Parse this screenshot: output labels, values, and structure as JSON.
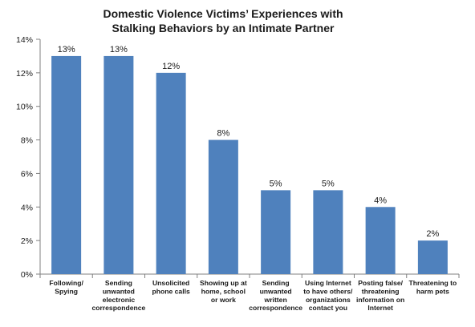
{
  "chart_data": {
    "type": "bar",
    "title": [
      "Domestic Violence Victims’ Experiences with",
      "Stalking Behaviors by an Intimate Partner"
    ],
    "xlabel": "",
    "ylabel": "",
    "ylim": [
      0,
      14
    ],
    "yticks": [
      "0%",
      "2%",
      "4%",
      "6%",
      "8%",
      "10%",
      "12%",
      "14%"
    ],
    "grid": false,
    "categories": [
      [
        "Following/",
        "Spying"
      ],
      [
        "Sending",
        "unwanted",
        "electronic",
        "correspondence"
      ],
      [
        "Unsolicited",
        "phone calls"
      ],
      [
        "Showing up at",
        "home, school",
        "or work"
      ],
      [
        "Sending",
        "unwanted",
        "written",
        "correspondence"
      ],
      [
        "Using Internet",
        "to have others/",
        "organizations",
        "contact you"
      ],
      [
        "Posting false/",
        "threatening",
        "information on",
        "Internet"
      ],
      [
        "Threatening to",
        "harm pets"
      ]
    ],
    "values": [
      13,
      13,
      12,
      8,
      5,
      5,
      4,
      2
    ],
    "data_labels": [
      "13%",
      "13%",
      "12%",
      "8%",
      "5%",
      "5%",
      "4%",
      "2%"
    ],
    "colors": {
      "bar": "#4f81bd",
      "axis": "#808080",
      "text": "#1a1a1a"
    }
  }
}
